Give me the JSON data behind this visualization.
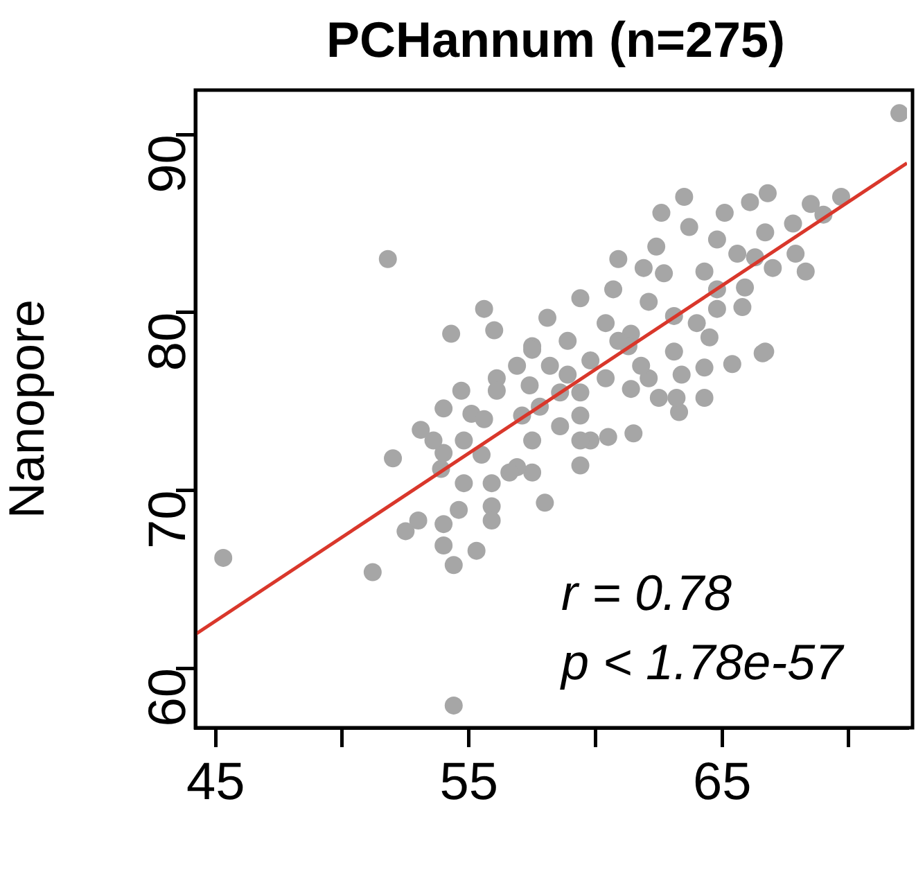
{
  "chart_data": {
    "type": "scatter",
    "title": "PCHannum (n=275)",
    "ylabel": "Nanopore",
    "xlim": [
      44.2,
      72.3
    ],
    "ylim": [
      56.65,
      92.5
    ],
    "xticks": [
      45,
      {
        "value": 50,
        "label": null
      },
      55,
      {
        "value": 60,
        "label": null
      },
      65,
      {
        "value": 70,
        "label": null
      }
    ],
    "yticks": [
      60,
      70,
      80,
      90
    ],
    "grid": false,
    "legend": false,
    "marker": "circle",
    "annotations": [
      "r = 0.78",
      "p < 1.78e-57"
    ],
    "series": [
      {
        "color": "#a6a6a6",
        "x": [
          72.0,
          51.8,
          45.3,
          51.2,
          54.4,
          55.6,
          54.3,
          56.0,
          63.5,
          66.8,
          66.1,
          62.6,
          68.5,
          69.7,
          69.0,
          67.8,
          66.7,
          65.1,
          63.7,
          64.8,
          67.9,
          68.3,
          65.6,
          66.3,
          67.0,
          65.9,
          65.8,
          64.8,
          64.8,
          64.3,
          60.9,
          62.4,
          61.9,
          62.7,
          59.4,
          60.7,
          58.1,
          57.5,
          66.7,
          62.1,
          63.1,
          60.4,
          61.4,
          64.0,
          58.9,
          66.6,
          65.4,
          64.3,
          64.3,
          63.3,
          63.2,
          61.5,
          60.5,
          59.4,
          59.8,
          58.0,
          57.5,
          56.9,
          56.6,
          55.9,
          55.9,
          55.9,
          55.3,
          54.4,
          54.0,
          54.0,
          53.0,
          52.5,
          54.6,
          54.8,
          53.9,
          54.0,
          52.0,
          53.1,
          53.6,
          54.0,
          54.7,
          55.1,
          55.6,
          54.8,
          55.5,
          56.1,
          56.1,
          56.9,
          57.4,
          58.2,
          57.5,
          57.8,
          57.1,
          57.5,
          58.6,
          59.4,
          59.4,
          61.4,
          62.1,
          62.5,
          60.4,
          59.4,
          58.6,
          61.3,
          63.1,
          63.4,
          61.8,
          59.8,
          58.9,
          64.5,
          60.9
        ],
        "values": [
          91.2,
          83.0,
          66.2,
          65.4,
          57.9,
          80.2,
          78.8,
          79.0,
          86.5,
          86.7,
          86.2,
          85.6,
          86.1,
          86.5,
          85.5,
          85.0,
          84.5,
          85.6,
          84.8,
          84.1,
          83.3,
          82.3,
          83.3,
          83.1,
          82.5,
          81.4,
          80.3,
          80.2,
          81.3,
          82.3,
          83.0,
          83.7,
          82.5,
          82.2,
          80.8,
          81.3,
          79.7,
          78.1,
          77.8,
          80.6,
          79.8,
          79.4,
          78.8,
          79.4,
          78.4,
          77.7,
          77.1,
          76.9,
          75.2,
          74.4,
          75.2,
          73.2,
          73.0,
          71.4,
          72.8,
          69.3,
          71.0,
          71.3,
          71.0,
          70.4,
          69.1,
          68.3,
          66.6,
          65.8,
          66.9,
          68.1,
          68.3,
          67.7,
          68.9,
          70.4,
          71.2,
          72.1,
          71.8,
          73.4,
          72.8,
          74.6,
          75.6,
          74.3,
          74.0,
          72.8,
          72.0,
          76.3,
          75.6,
          77.0,
          75.9,
          77.0,
          77.9,
          74.7,
          74.2,
          72.8,
          73.6,
          74.2,
          72.8,
          75.7,
          76.3,
          75.2,
          76.3,
          75.5,
          75.5,
          78.1,
          77.8,
          76.5,
          77.0,
          77.3,
          76.5,
          78.6,
          78.4
        ]
      },
      {
        "type": "line",
        "color": "#d9372b",
        "x": [
          44.2,
          72.3
        ],
        "values": [
          61.9,
          88.4
        ],
        "marker": "none"
      }
    ]
  }
}
